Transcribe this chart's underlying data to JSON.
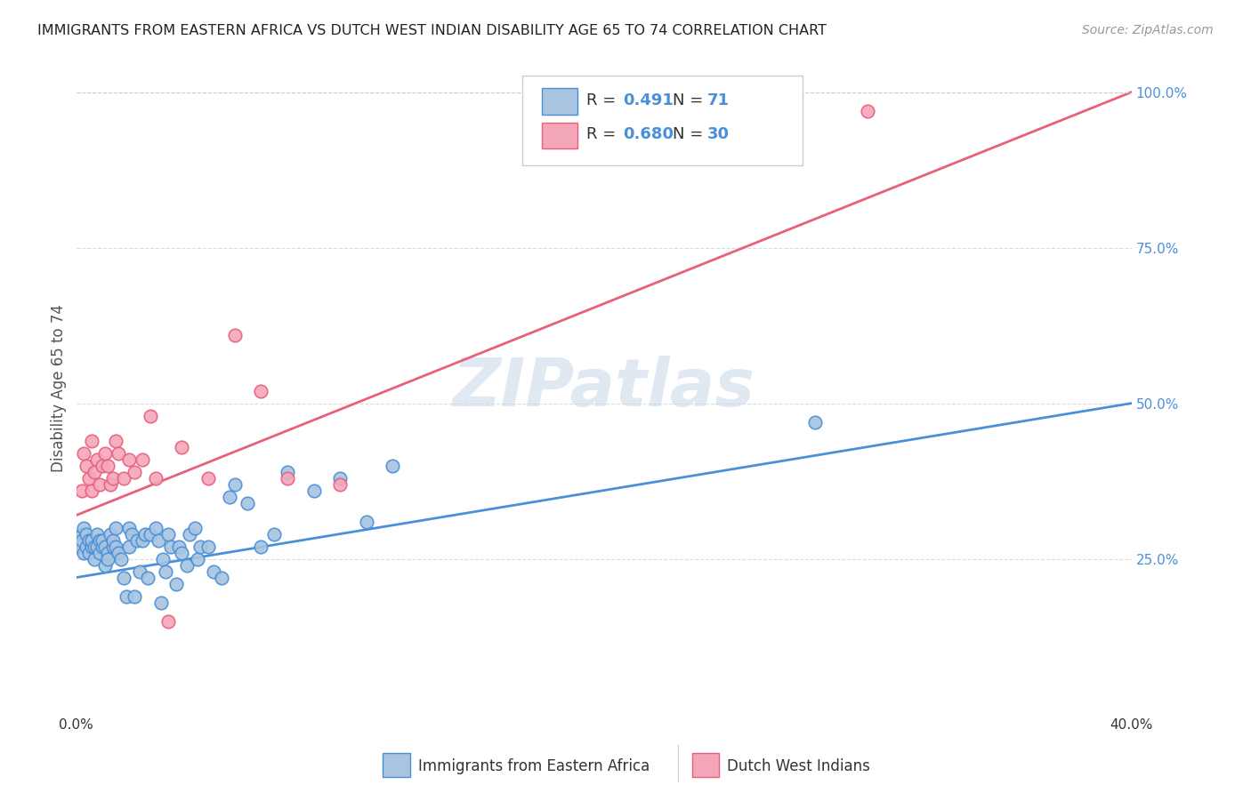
{
  "title": "IMMIGRANTS FROM EASTERN AFRICA VS DUTCH WEST INDIAN DISABILITY AGE 65 TO 74 CORRELATION CHART",
  "source": "Source: ZipAtlas.com",
  "ylabel": "Disability Age 65 to 74",
  "xlim": [
    0.0,
    0.4
  ],
  "ylim": [
    0.0,
    1.05
  ],
  "ytick_values": [
    0.0,
    0.25,
    0.5,
    0.75,
    1.0
  ],
  "ytick_labels": [
    "",
    "25.0%",
    "50.0%",
    "75.0%",
    "100.0%"
  ],
  "xtick_values": [
    0.0,
    0.05,
    0.1,
    0.15,
    0.2,
    0.25,
    0.3,
    0.35,
    0.4
  ],
  "xtick_labels": [
    "0.0%",
    "",
    "",
    "",
    "",
    "",
    "",
    "",
    "40.0%"
  ],
  "legend_R1": "0.491",
  "legend_N1": "71",
  "legend_R2": "0.680",
  "legend_N2": "30",
  "color_blue": "#a8c4e0",
  "color_pink": "#f4a7b9",
  "line_blue": "#4a90d9",
  "line_pink": "#e8607a",
  "label1": "Immigrants from Eastern Africa",
  "label2": "Dutch West Indians",
  "blue_intercept": 0.22,
  "blue_slope": 0.7,
  "pink_intercept": 0.32,
  "pink_slope": 1.7,
  "blue_scatter_x": [
    0.001,
    0.002,
    0.002,
    0.003,
    0.003,
    0.004,
    0.004,
    0.005,
    0.005,
    0.006,
    0.006,
    0.007,
    0.007,
    0.008,
    0.008,
    0.009,
    0.009,
    0.01,
    0.01,
    0.011,
    0.011,
    0.012,
    0.012,
    0.013,
    0.014,
    0.014,
    0.015,
    0.015,
    0.016,
    0.017,
    0.018,
    0.019,
    0.02,
    0.02,
    0.021,
    0.022,
    0.023,
    0.024,
    0.025,
    0.026,
    0.027,
    0.028,
    0.03,
    0.031,
    0.032,
    0.033,
    0.034,
    0.035,
    0.036,
    0.038,
    0.039,
    0.04,
    0.042,
    0.043,
    0.045,
    0.046,
    0.047,
    0.05,
    0.052,
    0.055,
    0.058,
    0.06,
    0.065,
    0.07,
    0.075,
    0.08,
    0.09,
    0.1,
    0.11,
    0.12,
    0.28
  ],
  "blue_scatter_y": [
    0.27,
    0.29,
    0.28,
    0.3,
    0.26,
    0.29,
    0.27,
    0.28,
    0.26,
    0.27,
    0.28,
    0.27,
    0.25,
    0.29,
    0.27,
    0.28,
    0.26,
    0.27,
    0.28,
    0.24,
    0.27,
    0.26,
    0.25,
    0.29,
    0.27,
    0.28,
    0.3,
    0.27,
    0.26,
    0.25,
    0.22,
    0.19,
    0.27,
    0.3,
    0.29,
    0.19,
    0.28,
    0.23,
    0.28,
    0.29,
    0.22,
    0.29,
    0.3,
    0.28,
    0.18,
    0.25,
    0.23,
    0.29,
    0.27,
    0.21,
    0.27,
    0.26,
    0.24,
    0.29,
    0.3,
    0.25,
    0.27,
    0.27,
    0.23,
    0.22,
    0.35,
    0.37,
    0.34,
    0.27,
    0.29,
    0.39,
    0.36,
    0.38,
    0.31,
    0.4,
    0.47
  ],
  "pink_scatter_x": [
    0.002,
    0.003,
    0.004,
    0.005,
    0.006,
    0.006,
    0.007,
    0.008,
    0.009,
    0.01,
    0.011,
    0.012,
    0.013,
    0.014,
    0.015,
    0.016,
    0.018,
    0.02,
    0.022,
    0.025,
    0.028,
    0.03,
    0.035,
    0.04,
    0.05,
    0.06,
    0.07,
    0.08,
    0.1,
    0.3
  ],
  "pink_scatter_y": [
    0.36,
    0.42,
    0.4,
    0.38,
    0.36,
    0.44,
    0.39,
    0.41,
    0.37,
    0.4,
    0.42,
    0.4,
    0.37,
    0.38,
    0.44,
    0.42,
    0.38,
    0.41,
    0.39,
    0.41,
    0.48,
    0.38,
    0.15,
    0.43,
    0.38,
    0.61,
    0.52,
    0.38,
    0.37,
    0.97
  ]
}
